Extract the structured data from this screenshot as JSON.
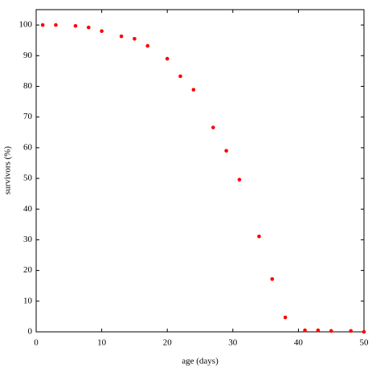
{
  "chart_data": {
    "type": "scatter",
    "x_label": "age (days)",
    "y_label": "survivors (%)",
    "x": [
      1,
      3,
      6,
      8,
      10,
      13,
      15,
      17,
      20,
      22,
      24,
      27,
      29,
      31,
      34,
      36,
      38,
      41,
      43,
      45,
      48,
      50
    ],
    "values": [
      100,
      100,
      99.7,
      99.2,
      98,
      96.3,
      95.5,
      93.2,
      89,
      83.3,
      78.9,
      66.6,
      59,
      49.6,
      31.1,
      17.2,
      4.7,
      0.5,
      0.5,
      0.3,
      0.3,
      0
    ],
    "color": "#ff0000",
    "xlim": [
      0,
      50
    ],
    "xticks": [
      0,
      10,
      20,
      30,
      40,
      50
    ],
    "ylim": [
      0,
      105
    ],
    "yticks": [
      0,
      10,
      20,
      30,
      40,
      50,
      60,
      70,
      80,
      90,
      100
    ]
  }
}
